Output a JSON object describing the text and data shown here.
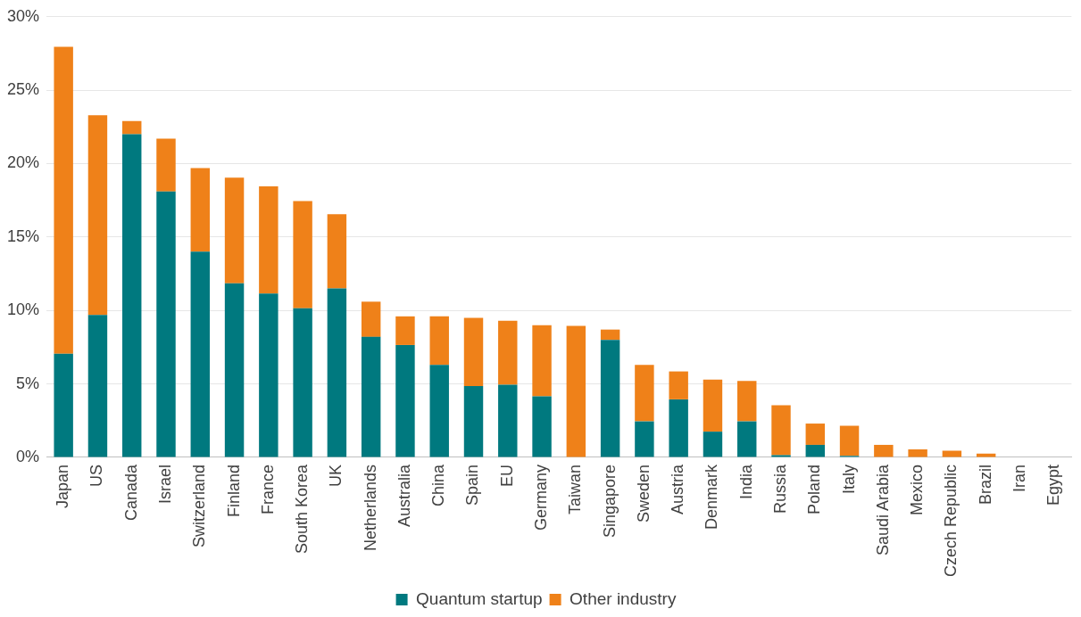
{
  "chart_data": {
    "type": "bar",
    "stacked": true,
    "categories": [
      "Japan",
      "US",
      "Canada",
      "Israel",
      "Switzerland",
      "Finland",
      "France",
      "South Korea",
      "UK",
      "Netherlands",
      "Australia",
      "China",
      "Spain",
      "EU",
      "Germany",
      "Taiwan",
      "Singapore",
      "Sweden",
      "Austria",
      "Denmark",
      "India",
      "Russia",
      "Poland",
      "Italy",
      "Saudi Arabia",
      "Mexico",
      "Czech Republic",
      "Brazil",
      "Iran",
      "Egypt"
    ],
    "series": [
      {
        "name": "Quantum startup",
        "color": "#00797f",
        "values": [
          7.05,
          9.7,
          22.0,
          18.1,
          14.0,
          11.85,
          11.15,
          10.15,
          11.5,
          8.2,
          7.65,
          6.3,
          4.85,
          4.95,
          4.15,
          0,
          8.0,
          2.45,
          3.95,
          1.75,
          2.45,
          0.15,
          0.85,
          0.1,
          0,
          0,
          0,
          0,
          0,
          0
        ]
      },
      {
        "name": "Other industry",
        "color": "#ef8119",
        "values": [
          20.9,
          13.6,
          0.9,
          3.6,
          5.7,
          7.2,
          7.3,
          7.3,
          5.05,
          2.4,
          1.95,
          3.3,
          4.65,
          4.35,
          4.85,
          8.95,
          0.7,
          3.85,
          1.9,
          3.55,
          2.75,
          3.4,
          1.45,
          2.05,
          0.85,
          0.55,
          0.45,
          0.25,
          0,
          0
        ]
      }
    ],
    "ylim": [
      0,
      30
    ],
    "yticks": [
      {
        "value": 0,
        "label": "0%"
      },
      {
        "value": 5,
        "label": "5%"
      },
      {
        "value": 10,
        "label": "10%"
      },
      {
        "value": 15,
        "label": "15%"
      },
      {
        "value": 20,
        "label": "20%"
      },
      {
        "value": 25,
        "label": "25%"
      },
      {
        "value": 30,
        "label": "30%"
      }
    ],
    "grid": "y",
    "legend": "bottom"
  }
}
